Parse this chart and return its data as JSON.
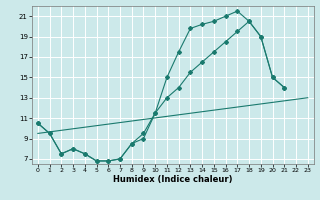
{
  "title": "",
  "xlabel": "Humidex (Indice chaleur)",
  "ylabel": "",
  "bg_color": "#cce9ea",
  "grid_color": "#ffffff",
  "line_color": "#1a7a6e",
  "xlim": [
    -0.5,
    23.5
  ],
  "ylim": [
    6.5,
    22.0
  ],
  "xticks": [
    0,
    1,
    2,
    3,
    4,
    5,
    6,
    7,
    8,
    9,
    10,
    11,
    12,
    13,
    14,
    15,
    16,
    17,
    18,
    19,
    20,
    21,
    22,
    23
  ],
  "yticks": [
    7,
    9,
    11,
    13,
    15,
    17,
    19,
    21
  ],
  "series1_x": [
    0,
    1,
    2,
    3,
    4,
    5,
    6,
    7,
    8,
    9,
    10,
    11,
    12,
    13,
    14,
    15,
    16,
    17,
    18,
    19,
    20,
    21
  ],
  "series1_y": [
    10.5,
    9.5,
    7.5,
    8.0,
    7.5,
    6.8,
    6.8,
    7.0,
    8.5,
    9.0,
    11.5,
    15.0,
    17.5,
    19.8,
    20.2,
    20.5,
    21.0,
    21.5,
    20.5,
    19.0,
    15.0,
    14.0
  ],
  "series2_x": [
    0,
    1,
    2,
    3,
    4,
    5,
    6,
    7,
    8,
    9,
    10,
    11,
    12,
    13,
    14,
    15,
    16,
    17,
    18,
    19,
    20,
    21
  ],
  "series2_y": [
    10.5,
    9.5,
    7.5,
    8.0,
    7.5,
    6.8,
    6.8,
    7.0,
    8.5,
    9.5,
    11.5,
    13.0,
    14.0,
    15.5,
    16.5,
    17.5,
    18.5,
    19.5,
    20.5,
    19.0,
    15.0,
    14.0
  ],
  "series3_x": [
    0,
    23
  ],
  "series3_y": [
    9.5,
    13.0
  ]
}
